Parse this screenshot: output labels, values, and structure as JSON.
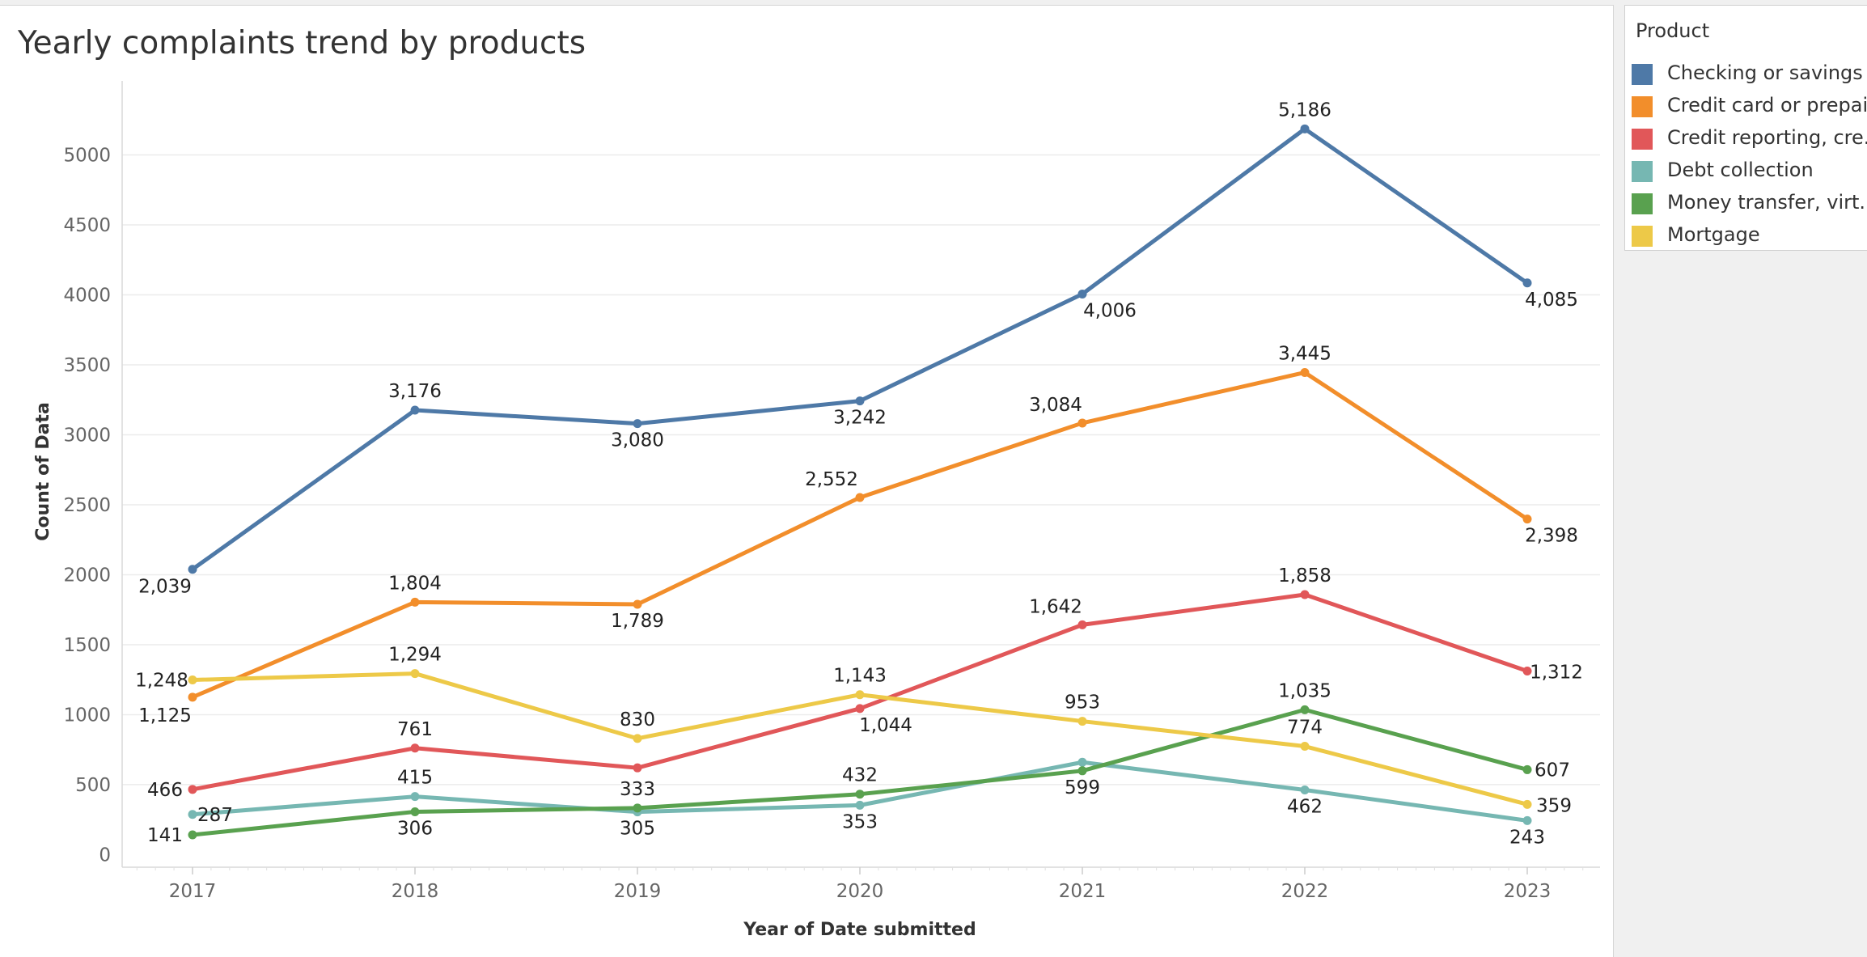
{
  "chart_data": {
    "type": "line",
    "title": "Yearly complaints trend by products",
    "xlabel": "Year of Date submitted",
    "ylabel": "Count of Data",
    "categories": [
      "2017",
      "2018",
      "2019",
      "2020",
      "2021",
      "2022",
      "2023"
    ],
    "ylim": [
      -90,
      5500
    ],
    "y_ticks": [
      "0",
      "500",
      "1000",
      "1500",
      "2000",
      "2500",
      "3000",
      "3500",
      "4000",
      "4500",
      "5000"
    ],
    "grid": true,
    "legend_title": "Product",
    "legend_position": "right",
    "series": [
      {
        "name": "Checking or savings ..",
        "color": "#4e79a7",
        "values": [
          2039,
          3176,
          3080,
          3242,
          4006,
          5186,
          4085
        ],
        "labels": [
          "2,039",
          "3,176",
          "3,080",
          "3,242",
          "4,006",
          "5,186",
          "4,085"
        ]
      },
      {
        "name": "Credit card or prepai..",
        "color": "#f28e2b",
        "values": [
          1125,
          1804,
          1789,
          2552,
          3084,
          3445,
          2398
        ],
        "labels": [
          "1,125",
          "1,804",
          "1,789",
          "2,552",
          "3,084",
          "3,445",
          "2,398"
        ]
      },
      {
        "name": "Credit reporting, cre..",
        "color": "#e15759",
        "values": [
          466,
          761,
          620,
          1044,
          1642,
          1858,
          1312
        ],
        "labels": [
          "466",
          "761",
          "",
          "1,044",
          "1,642",
          "1,858",
          "1,312"
        ]
      },
      {
        "name": "Debt collection",
        "color": "#76b7b2",
        "values": [
          287,
          415,
          305,
          353,
          660,
          462,
          243
        ],
        "labels": [
          "287",
          "415",
          "305",
          "353",
          "",
          "462",
          "243"
        ]
      },
      {
        "name": "Money transfer, virt..",
        "color": "#59a14f",
        "values": [
          141,
          306,
          333,
          432,
          599,
          1035,
          607
        ],
        "labels": [
          "141",
          "306",
          "333",
          "432",
          "599",
          "1,035",
          "607"
        ]
      },
      {
        "name": "Mortgage",
        "color": "#edc948",
        "values": [
          1248,
          1294,
          830,
          1143,
          953,
          774,
          359
        ],
        "labels": [
          "1,248",
          "1,294",
          "830",
          "1,143",
          "953",
          "774",
          "359"
        ]
      }
    ]
  }
}
